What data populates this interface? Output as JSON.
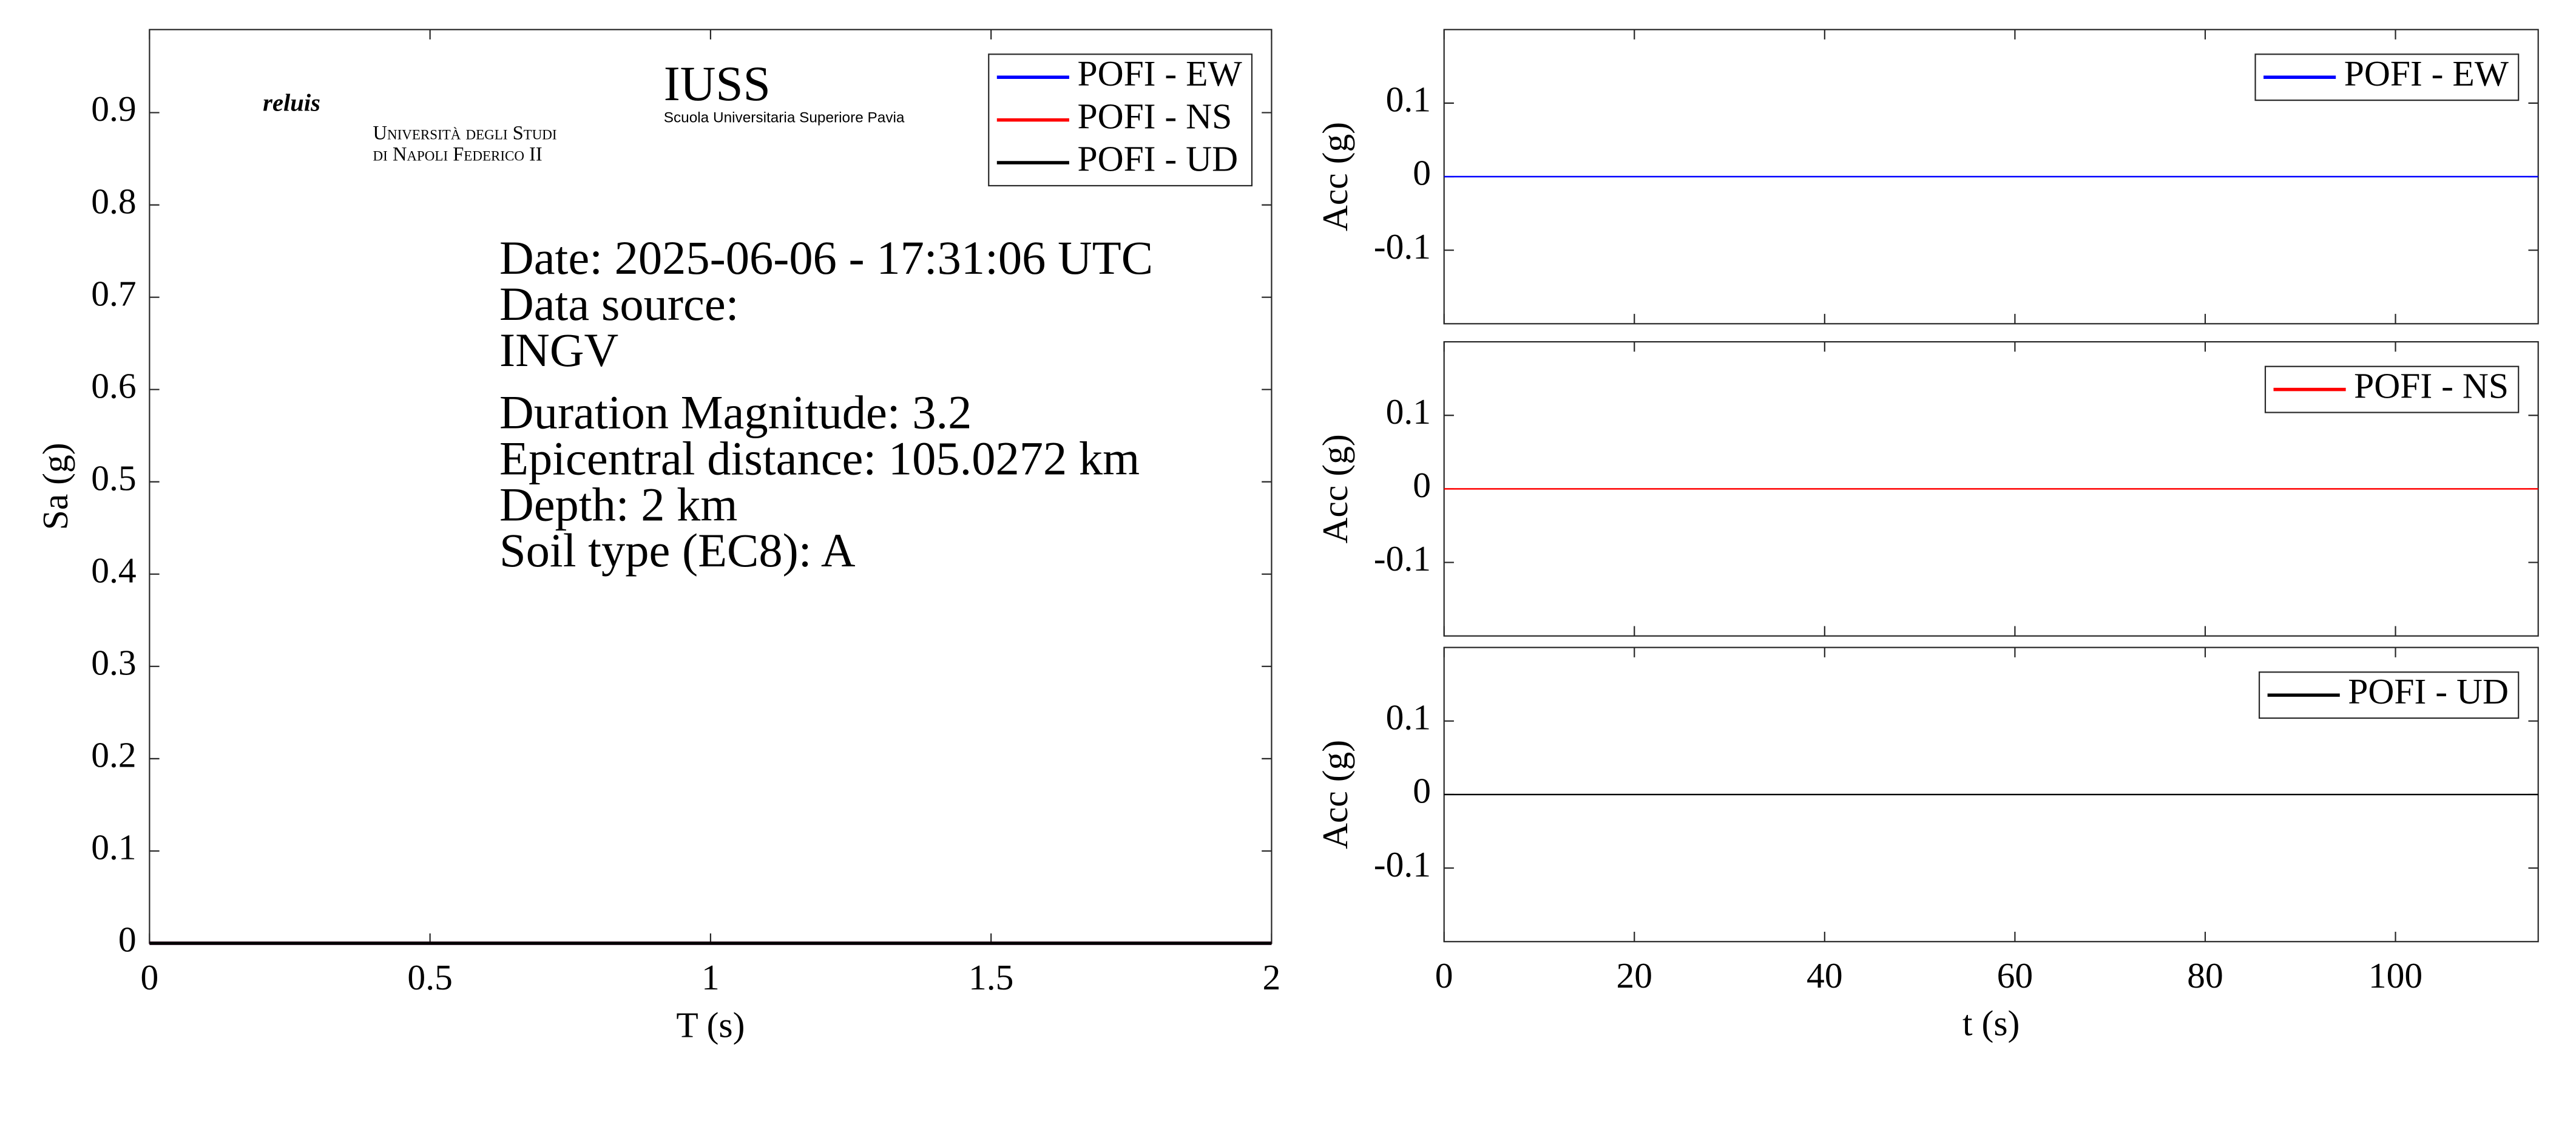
{
  "chart_data": [
    {
      "type": "line",
      "xlabel": "T (s)",
      "ylabel": "Sa (g)",
      "xlim": [
        0,
        2
      ],
      "xticks": [
        0,
        0.5,
        1,
        1.5,
        2
      ],
      "ylim": [
        0,
        0.99
      ],
      "yticks": [
        0,
        0.1,
        0.2,
        0.3,
        0.4,
        0.5,
        0.6,
        0.7,
        0.8,
        0.9
      ],
      "x": [
        0,
        2
      ],
      "series": [
        {
          "name": "POFI - EW",
          "color": "#0000ff",
          "values": [
            0,
            0
          ]
        },
        {
          "name": "POFI - NS",
          "color": "#ff0000",
          "values": [
            0,
            0
          ]
        },
        {
          "name": "POFI - UD",
          "color": "#000000",
          "values": [
            0,
            0
          ]
        }
      ],
      "legend": "upper right",
      "annotations": [
        "Date: 2025-06-06 - 17:31:06 UTC",
        "Data source:",
        "INGV",
        "Duration Magnitude: 3.2",
        "Epicentral distance: 105.0272 km",
        "Depth: 2 km",
        "Soil type (EC8): A"
      ],
      "logos": [
        "reluis",
        "Università degli Studi",
        "di Napoli Federico II",
        "IUSS",
        "Scuola Universitaria Superiore Pavia"
      ]
    },
    {
      "type": "line",
      "ylabel": "Acc (g)",
      "xlim": [
        0,
        115
      ],
      "xticks": [
        0,
        20,
        40,
        60,
        80,
        100
      ],
      "ylim": [
        -0.2,
        0.2
      ],
      "yticks": [
        -0.1,
        0,
        0.1
      ],
      "x": [
        0,
        115
      ],
      "series": [
        {
          "name": "POFI - EW",
          "color": "#0000ff",
          "values": [
            0,
            0
          ]
        }
      ],
      "legend": "upper right"
    },
    {
      "type": "line",
      "ylabel": "Acc (g)",
      "xlim": [
        0,
        115
      ],
      "xticks": [
        0,
        20,
        40,
        60,
        80,
        100
      ],
      "ylim": [
        -0.2,
        0.2
      ],
      "yticks": [
        -0.1,
        0,
        0.1
      ],
      "x": [
        0,
        115
      ],
      "series": [
        {
          "name": "POFI - NS",
          "color": "#ff0000",
          "values": [
            0,
            0
          ]
        }
      ],
      "legend": "upper right"
    },
    {
      "type": "line",
      "xlabel": "t (s)",
      "ylabel": "Acc (g)",
      "xlim": [
        0,
        115
      ],
      "xticks": [
        0,
        20,
        40,
        60,
        80,
        100
      ],
      "ylim": [
        -0.2,
        0.2
      ],
      "yticks": [
        -0.1,
        0,
        0.1
      ],
      "x": [
        0,
        115
      ],
      "series": [
        {
          "name": "POFI - UD",
          "color": "#000000",
          "values": [
            0,
            0
          ]
        }
      ],
      "legend": "upper right"
    }
  ]
}
